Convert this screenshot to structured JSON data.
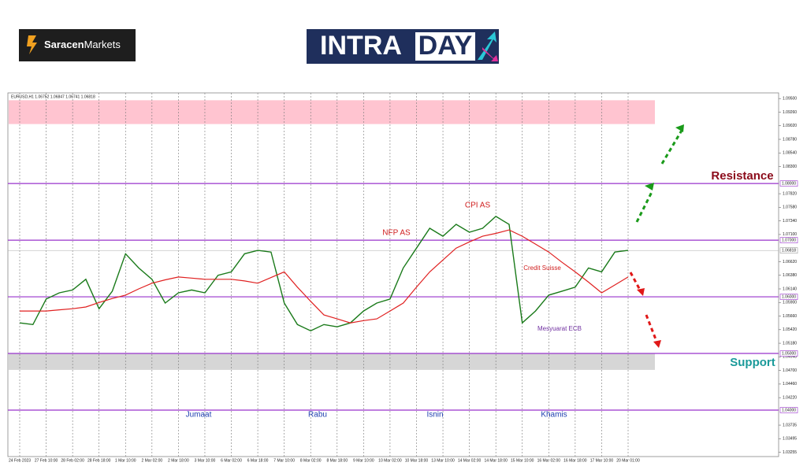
{
  "header": {
    "brand_bold": "Saracen",
    "brand": "Markets",
    "banner_a": "INTRA",
    "banner_b": "DAY"
  },
  "chart_data": {
    "type": "line",
    "title": "EURUSD,H1 1.06752 1.06847 1.06741 1.06818",
    "categories": [
      "24 Feb 2023",
      null,
      "27 Feb 10:00",
      null,
      "28 Feb 02:00",
      null,
      "28 Feb 18:00",
      null,
      "1 Mar 10:00",
      null,
      "2 Mar 02:00",
      null,
      "2 Mar 18:00",
      null,
      "3 Mar 10:00",
      null,
      "6 Mar 02:00",
      null,
      "6 Mar 18:00",
      null,
      "7 Mar 10:00",
      null,
      "8 Mar 02:00",
      null,
      "8 Mar 18:00",
      null,
      "9 Mar 10:00",
      null,
      "10 Mar 02:00",
      null,
      "10 Mar 18:00",
      null,
      "13 Mar 10:00",
      null,
      "14 Mar 02:00",
      null,
      "14 Mar 18:00",
      null,
      "15 Mar 10:00",
      null,
      "16 Mar 02:00",
      null,
      "16 Mar 18:00",
      null,
      "17 Mar 10:00",
      null,
      "20 Mar 01:00"
    ],
    "series": [
      {
        "color": "#1a7a1a",
        "values": [
          1.0554,
          1.0551,
          1.0596,
          1.0607,
          1.0612,
          1.0631,
          1.0579,
          1.061,
          1.0676,
          1.0651,
          1.0631,
          1.0589,
          1.0607,
          1.0612,
          1.0607,
          1.0638,
          1.0644,
          1.0676,
          1.0682,
          1.0679,
          1.0589,
          1.0551,
          1.054,
          1.0551,
          1.0547,
          1.0554,
          1.0575,
          1.0589,
          1.0596,
          1.0651,
          1.0686,
          1.0721,
          1.0707,
          1.0728,
          1.0714,
          1.0721,
          1.0742,
          1.0728,
          1.0554,
          1.0575,
          1.0603,
          1.061,
          1.0617,
          1.0651,
          1.0644,
          1.0679,
          1.0682
        ]
      },
      {
        "color": "#e02020",
        "values": [
          1.0575,
          1.0575,
          1.0575,
          1.0577,
          1.0579,
          1.0582,
          1.059,
          1.0597,
          1.0603,
          1.0614,
          1.0624,
          1.063,
          1.0635,
          1.0633,
          1.0631,
          1.0631,
          1.0631,
          1.0628,
          1.0624,
          1.0634,
          1.0644,
          1.0617,
          1.0592,
          1.0568,
          1.0561,
          1.0554,
          1.0558,
          1.0561,
          1.0575,
          1.0589,
          1.0617,
          1.0644,
          1.0665,
          1.0686,
          1.0697,
          1.0707,
          1.0712,
          1.0718,
          1.0707,
          1.0693,
          1.0679,
          1.0661,
          1.0644,
          1.0626,
          1.0607,
          1.0621,
          1.0635
        ]
      }
    ],
    "ylim": [
      1.0318,
      1.096
    ],
    "yticks": [
      {
        "value": 1.095,
        "label": "1.09500"
      },
      {
        "value": 1.0926,
        "label": "1.09260"
      },
      {
        "value": 1.0902,
        "label": "1.09020"
      },
      {
        "value": 1.0878,
        "label": "1.08780"
      },
      {
        "value": 1.0854,
        "label": "1.08540"
      },
      {
        "value": 1.083,
        "label": "1.08300"
      },
      {
        "value": 1.0782,
        "label": "1.07820"
      },
      {
        "value": 1.0758,
        "label": "1.07580"
      },
      {
        "value": 1.0734,
        "label": "1.07340"
      },
      {
        "value": 1.071,
        "label": "1.07100"
      },
      {
        "value": 1.0662,
        "label": "1.06620"
      },
      {
        "value": 1.0638,
        "label": "1.06380"
      },
      {
        "value": 1.0614,
        "label": "1.06140"
      },
      {
        "value": 1.059,
        "label": "1.05900"
      },
      {
        "value": 1.0566,
        "label": "1.05660"
      },
      {
        "value": 1.0542,
        "label": "1.05420"
      },
      {
        "value": 1.0518,
        "label": "1.05180"
      },
      {
        "value": 1.0494,
        "label": "1.04940"
      },
      {
        "value": 1.047,
        "label": "1.04700"
      },
      {
        "value": 1.0446,
        "label": "1.04460"
      },
      {
        "value": 1.0422,
        "label": "1.04220"
      },
      {
        "value": 1.03735,
        "label": "1.03735"
      },
      {
        "value": 1.03495,
        "label": "1.03495"
      },
      {
        "value": 1.03255,
        "label": "1.03255"
      }
    ],
    "levels": [
      {
        "value": 1.08,
        "label": "1.08000"
      },
      {
        "value": 1.07,
        "label": "1.07000"
      },
      {
        "value": 1.06,
        "label": "1.06000"
      },
      {
        "value": 1.05,
        "label": "1.05000"
      },
      {
        "value": 1.04,
        "label": "1.04000"
      }
    ],
    "level_color": "#9933cc",
    "current": {
      "value": 1.06818,
      "label": "1.06818"
    },
    "zones": [
      {
        "from": 1.0905,
        "to": 1.0947,
        "color": "#ffc4d0"
      },
      {
        "from": 1.0471,
        "to": 1.05,
        "color": "#d6d6d6"
      }
    ],
    "grid": true,
    "annotations": [
      "NFP AS",
      "CPI AS",
      "Credit Suisse",
      "Mesyuarat ECB",
      "Jumaat",
      "Rabu",
      "Isnin",
      "Khamis",
      "Resistance",
      "Support"
    ]
  }
}
